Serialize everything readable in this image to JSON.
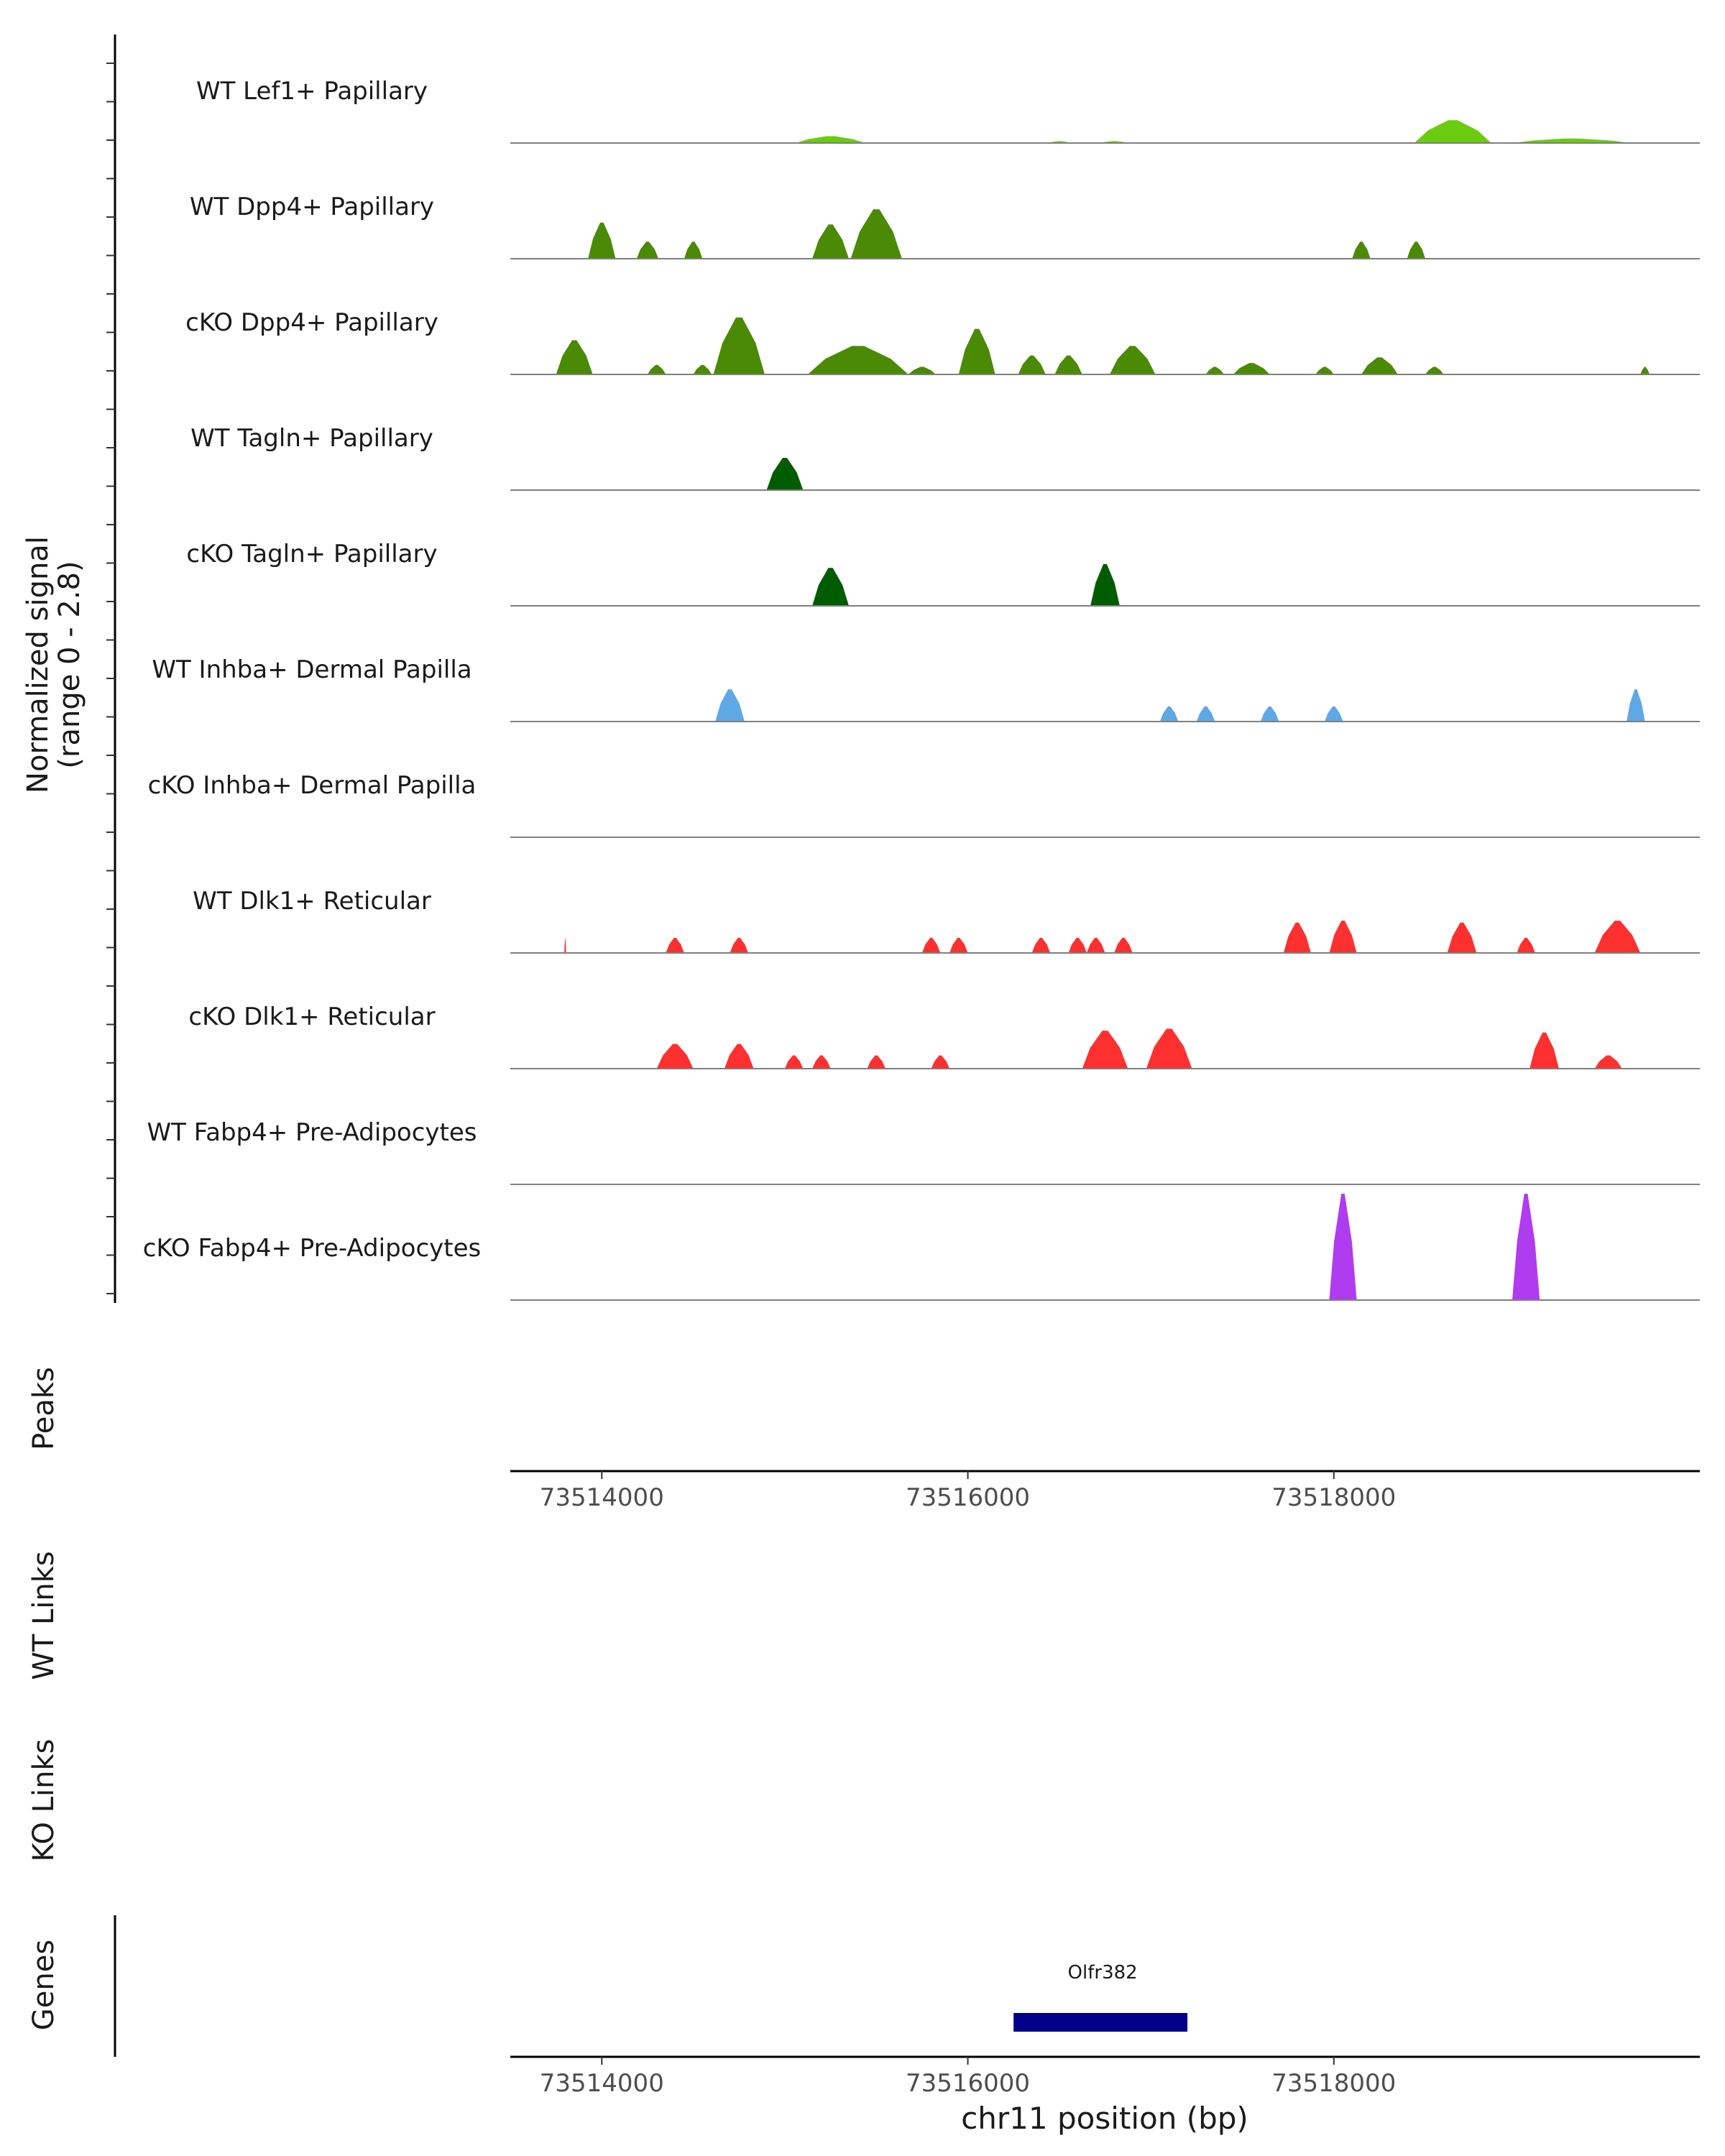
{
  "chart_data": {
    "type": "area",
    "title": "",
    "region": {
      "chrom": "chr11",
      "start": 73513500,
      "end": 73520000
    },
    "xlabel": "chr11 position (bp)",
    "xticks": [
      73514000,
      73516000,
      73518000
    ],
    "xtick_labels": [
      "73514000",
      "73516000",
      "73518000"
    ],
    "signal_ylabel": [
      "Normalized signal",
      "(range 0 - 2.8)"
    ],
    "signal_range": [
      0,
      2.8
    ],
    "panel_labels": {
      "peaks": "Peaks",
      "wt_links": "WT Links",
      "ko_links": "KO Links",
      "genes": "Genes"
    },
    "genes": [
      {
        "name": "Olfr382",
        "start": 73516250,
        "end": 73517200
      }
    ],
    "tracks": [
      {
        "name": "WT Lef1+ Papillary",
        "color": "#6ACC0E",
        "peaks": [
          [
            73515250,
            0.18,
            380
          ],
          [
            73516500,
            0.05,
            120
          ],
          [
            73516800,
            0.05,
            150
          ],
          [
            73518650,
            0.6,
            420
          ],
          [
            73519300,
            0.12,
            650
          ]
        ]
      },
      {
        "name": "WT Dpp4+ Papillary",
        "color": "#4A8A05",
        "peaks": [
          [
            73514000,
            0.95,
            150
          ],
          [
            73514250,
            0.45,
            120
          ],
          [
            73514500,
            0.45,
            100
          ],
          [
            73515250,
            0.9,
            200
          ],
          [
            73515500,
            1.3,
            280
          ],
          [
            73518150,
            0.45,
            100
          ],
          [
            73518450,
            0.45,
            100
          ]
        ]
      },
      {
        "name": "cKO Dpp4+ Papillary",
        "color": "#4A8A05",
        "peaks": [
          [
            73513850,
            0.9,
            200
          ],
          [
            73514300,
            0.25,
            100
          ],
          [
            73514550,
            0.25,
            100
          ],
          [
            73514750,
            1.5,
            280
          ],
          [
            73515400,
            0.75,
            550
          ],
          [
            73515750,
            0.2,
            150
          ],
          [
            73516050,
            1.2,
            200
          ],
          [
            73516350,
            0.5,
            150
          ],
          [
            73516550,
            0.5,
            150
          ],
          [
            73516900,
            0.75,
            250
          ],
          [
            73517350,
            0.2,
            100
          ],
          [
            73517550,
            0.3,
            200
          ],
          [
            73517950,
            0.2,
            100
          ],
          [
            73518250,
            0.45,
            200
          ],
          [
            73518550,
            0.2,
            100
          ],
          [
            73519700,
            0.2,
            50
          ]
        ]
      },
      {
        "name": "WT Tagln+ Papillary",
        "color": "#005C00",
        "peaks": [
          [
            73515000,
            0.85,
            200
          ]
        ]
      },
      {
        "name": "cKO Tagln+ Papillary",
        "color": "#005C00",
        "peaks": [
          [
            73515250,
            1.0,
            200
          ],
          [
            73516750,
            1.1,
            160
          ]
        ]
      },
      {
        "name": "WT Inhba+ Dermal Papilla",
        "color": "#5EA8E6",
        "peaks": [
          [
            73514700,
            0.85,
            160
          ],
          [
            73517100,
            0.4,
            100
          ],
          [
            73517300,
            0.4,
            100
          ],
          [
            73517650,
            0.4,
            100
          ],
          [
            73518000,
            0.4,
            100
          ],
          [
            73519650,
            0.85,
            100
          ]
        ]
      },
      {
        "name": "cKO Inhba+ Dermal Papilla",
        "color": "#5EA8E6",
        "peaks": []
      },
      {
        "name": "WT Dlk1+ Reticular",
        "color": "#FF3030",
        "peaks": [
          [
            73513800,
            0.4,
            10
          ],
          [
            73514400,
            0.4,
            100
          ],
          [
            73514750,
            0.4,
            100
          ],
          [
            73515800,
            0.4,
            100
          ],
          [
            73515950,
            0.4,
            100
          ],
          [
            73516400,
            0.4,
            100
          ],
          [
            73516600,
            0.4,
            100
          ],
          [
            73516700,
            0.4,
            100
          ],
          [
            73516850,
            0.4,
            100
          ],
          [
            73517800,
            0.8,
            150
          ],
          [
            73518050,
            0.85,
            150
          ],
          [
            73518700,
            0.8,
            160
          ],
          [
            73519050,
            0.4,
            100
          ],
          [
            73519550,
            0.85,
            250
          ]
        ]
      },
      {
        "name": "cKO Dlk1+ Reticular",
        "color": "#FF3030",
        "peaks": [
          [
            73514400,
            0.65,
            200
          ],
          [
            73514750,
            0.65,
            160
          ],
          [
            73515050,
            0.35,
            100
          ],
          [
            73515200,
            0.35,
            100
          ],
          [
            73515500,
            0.35,
            100
          ],
          [
            73515850,
            0.35,
            100
          ],
          [
            73516750,
            1.0,
            250
          ],
          [
            73517100,
            1.05,
            250
          ],
          [
            73519150,
            0.95,
            160
          ],
          [
            73519500,
            0.35,
            150
          ]
        ]
      },
      {
        "name": "WT Fabp4+ Pre-Adipocytes",
        "color": "#B03CF0",
        "peaks": []
      },
      {
        "name": "cKO Fabp4+ Pre-Adipocytes",
        "color": "#B03CF0",
        "peaks": [
          [
            73518050,
            2.8,
            150
          ],
          [
            73519050,
            2.8,
            150
          ]
        ]
      }
    ]
  }
}
